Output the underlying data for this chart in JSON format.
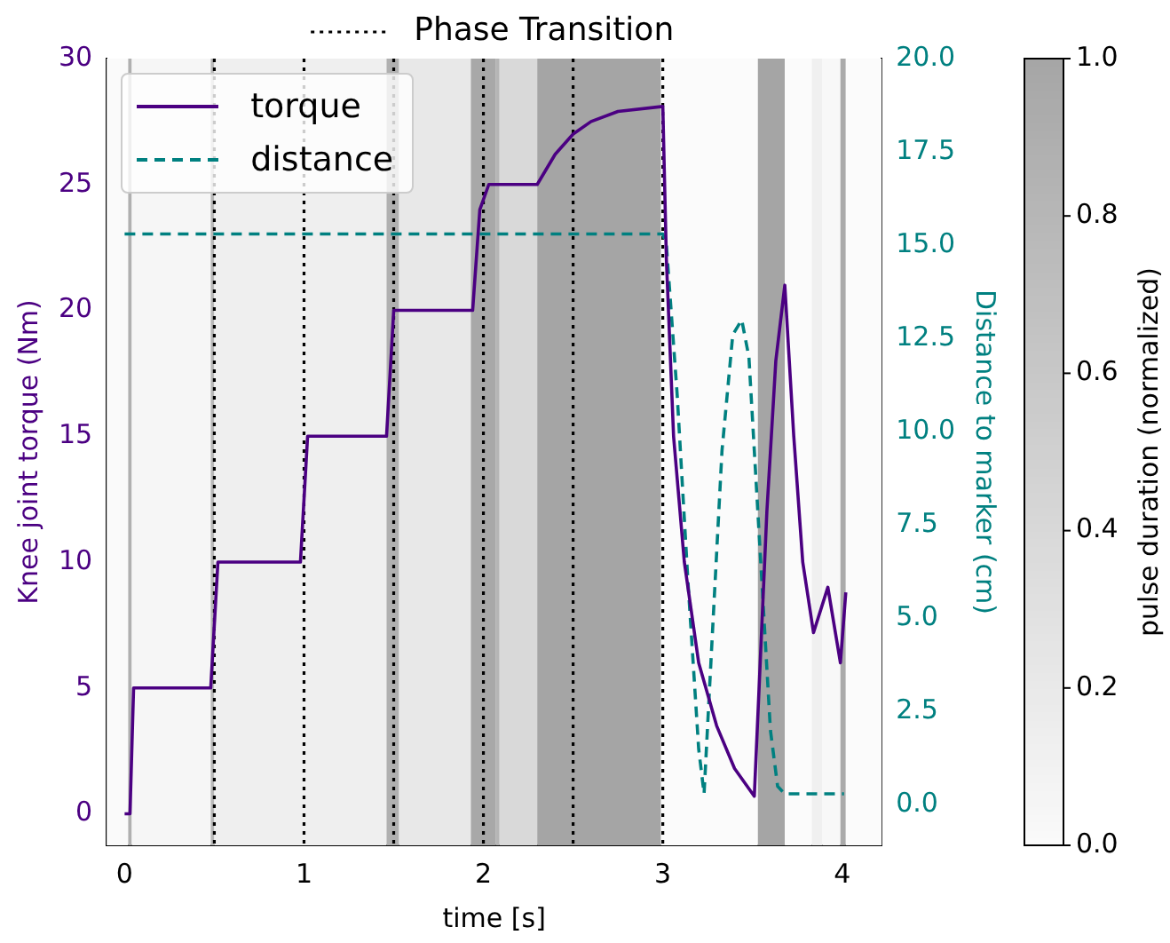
{
  "chart_data": {
    "type": "line",
    "xlabel": "time [s]",
    "ylabel": "Knee joint torque (Nm)",
    "y2label": "Distance to marker (cm)",
    "clabel": "pulse duration (normalized)",
    "xlim": [
      -0.1,
      4.22
    ],
    "xticks": [
      0,
      1,
      2,
      3,
      4
    ],
    "ylim": [
      -1.25,
      30
    ],
    "yticks": [
      0,
      5,
      10,
      15,
      20,
      25,
      30
    ],
    "y2lim": [
      -1.08,
      20
    ],
    "y2ticks": [
      {
        "value": 0,
        "label": "0.0"
      },
      {
        "value": 2.5,
        "label": "2.5"
      },
      {
        "value": 5,
        "label": "5.0"
      },
      {
        "value": 7.5,
        "label": "7.5"
      },
      {
        "value": 10,
        "label": "10.0"
      },
      {
        "value": 12.5,
        "label": "12.5"
      },
      {
        "value": 15,
        "label": "15.0"
      },
      {
        "value": 17.5,
        "label": "17.5"
      },
      {
        "value": 20,
        "label": "20.0"
      }
    ],
    "clim": [
      0,
      1
    ],
    "cticks": [
      {
        "value": 0,
        "label": "0.0"
      },
      {
        "value": 0.2,
        "label": "0.2"
      },
      {
        "value": 0.4,
        "label": "0.4"
      },
      {
        "value": 0.6,
        "label": "0.6"
      },
      {
        "value": 0.8,
        "label": "0.8"
      },
      {
        "value": 1,
        "label": "1.0"
      }
    ],
    "grid": false,
    "legend": "top left",
    "marker": "none",
    "series": [
      {
        "name": "torque",
        "color": "#4b0082",
        "line_style": "solid",
        "x": [
          0,
          0.03,
          0.05,
          0.48,
          0.52,
          0.98,
          1.02,
          1.46,
          1.5,
          1.94,
          1.98,
          2.03,
          2.3,
          2.4,
          2.5,
          2.6,
          2.75,
          3.0,
          3.02,
          3.06,
          3.12,
          3.2,
          3.3,
          3.4,
          3.51,
          3.58,
          3.63,
          3.68,
          3.73,
          3.78,
          3.84,
          3.92,
          3.99,
          4.02
        ],
        "values": [
          0,
          0,
          5,
          5,
          10,
          10,
          15,
          15,
          20,
          20,
          24,
          25,
          25,
          26.2,
          27,
          27.5,
          27.9,
          28.1,
          22,
          15,
          10,
          6,
          3.5,
          1.8,
          0.7,
          12,
          18,
          21,
          15,
          10,
          7.2,
          9,
          6,
          8.8
        ]
      },
      {
        "name": "distance",
        "color": "#008080",
        "line_style": "dashed",
        "axis": "y2",
        "x": [
          0,
          3.0,
          3.02,
          3.08,
          3.14,
          3.2,
          3.23,
          3.27,
          3.33,
          3.39,
          3.44,
          3.48,
          3.54,
          3.6,
          3.64,
          3.68,
          4.01
        ],
        "values": [
          15.3,
          15.3,
          15,
          11,
          6,
          1.5,
          0.3,
          4,
          9.5,
          12.6,
          13,
          12,
          7,
          2,
          0.5,
          0.3,
          0.3
        ]
      }
    ],
    "ref_lines": [
      {
        "axis": "x",
        "value": 0.5,
        "label": "Phase Transition",
        "color": "#000000",
        "line_style": "dotted"
      },
      {
        "axis": "x",
        "value": 1,
        "label": null,
        "color": "#000000",
        "line_style": "dotted"
      },
      {
        "axis": "x",
        "value": 1.5,
        "label": null,
        "color": "#000000",
        "line_style": "dotted"
      },
      {
        "axis": "x",
        "value": 2,
        "label": null,
        "color": "#000000",
        "line_style": "dotted"
      },
      {
        "axis": "x",
        "value": 2.5,
        "label": null,
        "color": "#000000",
        "line_style": "dotted"
      },
      {
        "axis": "x",
        "value": 3,
        "label": null,
        "color": "#000000",
        "line_style": "dotted"
      }
    ],
    "bands": [
      {
        "axis": "x",
        "from": -0.1,
        "to": 0.02,
        "color": "#fafafa"
      },
      {
        "axis": "x",
        "from": 0.02,
        "to": 0.04,
        "color": "#b0b0b0"
      },
      {
        "axis": "x",
        "from": 0.04,
        "to": 0.48,
        "color": "#f6f6f6"
      },
      {
        "axis": "x",
        "from": 0.48,
        "to": 0.5,
        "color": "#b8b8b8"
      },
      {
        "axis": "x",
        "from": 0.5,
        "to": 1.46,
        "color": "#efefef"
      },
      {
        "axis": "x",
        "from": 1.46,
        "to": 1.53,
        "color": "#b0b0b0"
      },
      {
        "axis": "x",
        "from": 1.53,
        "to": 1.93,
        "color": "#e8e8e8"
      },
      {
        "axis": "x",
        "from": 1.93,
        "to": 2.07,
        "color": "#a8a8a8"
      },
      {
        "axis": "x",
        "from": 2.07,
        "to": 2.09,
        "color": "#b5b5b5"
      },
      {
        "axis": "x",
        "from": 2.09,
        "to": 2.3,
        "color": "#d9d9d9"
      },
      {
        "axis": "x",
        "from": 2.3,
        "to": 2.99,
        "color": "#a5a5a5"
      },
      {
        "axis": "x",
        "from": 2.99,
        "to": 3.53,
        "color": "#fbfbfb"
      },
      {
        "axis": "x",
        "from": 3.53,
        "to": 3.68,
        "color": "#a5a5a5"
      },
      {
        "axis": "x",
        "from": 3.68,
        "to": 3.83,
        "color": "#fbfbfb"
      },
      {
        "axis": "x",
        "from": 3.83,
        "to": 3.89,
        "color": "#f0f0f0"
      },
      {
        "axis": "x",
        "from": 3.89,
        "to": 3.99,
        "color": "#f8f8f8"
      },
      {
        "axis": "x",
        "from": 3.99,
        "to": 4.02,
        "color": "#aaaaaa"
      },
      {
        "axis": "x",
        "from": 4.02,
        "to": 4.22,
        "color": "#fbfbfb"
      }
    ]
  }
}
